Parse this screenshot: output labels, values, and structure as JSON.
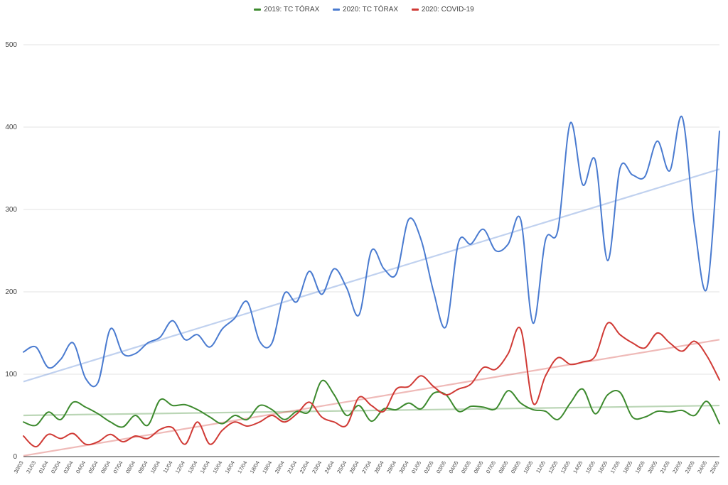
{
  "chart_data": {
    "type": "line",
    "title": "",
    "xlabel": "",
    "ylabel": "",
    "ylim": [
      0,
      500
    ],
    "yticks": [
      0,
      100,
      200,
      300,
      400,
      500
    ],
    "grid": true,
    "legend_position": "top",
    "trendlines": true,
    "categories": [
      "30/03",
      "31/03",
      "01/04",
      "02/04",
      "03/04",
      "04/04",
      "05/04",
      "06/04",
      "07/04",
      "08/04",
      "09/04",
      "10/04",
      "11/04",
      "12/04",
      "13/04",
      "14/04",
      "15/04",
      "16/04",
      "17/04",
      "18/04",
      "19/04",
      "20/04",
      "21/04",
      "22/04",
      "23/04",
      "24/04",
      "25/04",
      "26/04",
      "27/04",
      "28/04",
      "29/04",
      "30/04",
      "01/05",
      "02/05",
      "03/05",
      "04/05",
      "05/05",
      "06/05",
      "07/05",
      "08/05",
      "09/05",
      "10/05",
      "11/05",
      "12/05",
      "13/05",
      "14/05",
      "15/05",
      "16/05",
      "17/05",
      "18/05",
      "19/05",
      "20/05",
      "21/05",
      "22/05",
      "23/05",
      "24/05",
      "25/05"
    ],
    "series": [
      {
        "name": "2019: TC TÓRAX",
        "color": "#3d8a2e",
        "values": [
          42,
          38,
          54,
          45,
          66,
          60,
          52,
          42,
          36,
          50,
          38,
          69,
          62,
          63,
          57,
          48,
          40,
          50,
          45,
          62,
          57,
          45,
          55,
          55,
          92,
          75,
          50,
          62,
          43,
          58,
          57,
          65,
          58,
          77,
          75,
          55,
          61,
          60,
          58,
          80,
          65,
          57,
          55,
          45,
          65,
          82,
          52,
          75,
          78,
          48,
          48,
          55,
          54,
          56,
          50,
          67,
          40
        ]
      },
      {
        "name": "2020: TC TÓRAX",
        "color": "#4a7bd0",
        "values": [
          127,
          133,
          108,
          118,
          138,
          95,
          90,
          155,
          125,
          125,
          138,
          145,
          165,
          142,
          148,
          133,
          155,
          168,
          188,
          140,
          138,
          198,
          188,
          225,
          197,
          228,
          205,
          172,
          250,
          228,
          222,
          288,
          263,
          200,
          158,
          260,
          258,
          276,
          250,
          258,
          288,
          162,
          263,
          275,
          405,
          330,
          360,
          238,
          350,
          342,
          340,
          383,
          347,
          412,
          280,
          205,
          395
        ]
      },
      {
        "name": "2020: COVID-19",
        "color": "#d03a35",
        "values": [
          25,
          12,
          27,
          22,
          28,
          15,
          18,
          27,
          18,
          25,
          22,
          33,
          35,
          15,
          42,
          15,
          32,
          42,
          37,
          42,
          50,
          42,
          52,
          66,
          48,
          42,
          38,
          72,
          62,
          55,
          82,
          85,
          98,
          85,
          75,
          82,
          88,
          108,
          106,
          125,
          155,
          65,
          98,
          120,
          112,
          115,
          122,
          162,
          148,
          138,
          132,
          150,
          138,
          128,
          140,
          122,
          93
        ]
      }
    ],
    "trend": [
      {
        "name": "2019: TC TÓRAX",
        "start": 50,
        "end": 62
      },
      {
        "name": "2020: TC TÓRAX",
        "start": 91,
        "end": 349
      },
      {
        "name": "2020: COVID-19",
        "start": 1,
        "end": 142
      }
    ]
  }
}
